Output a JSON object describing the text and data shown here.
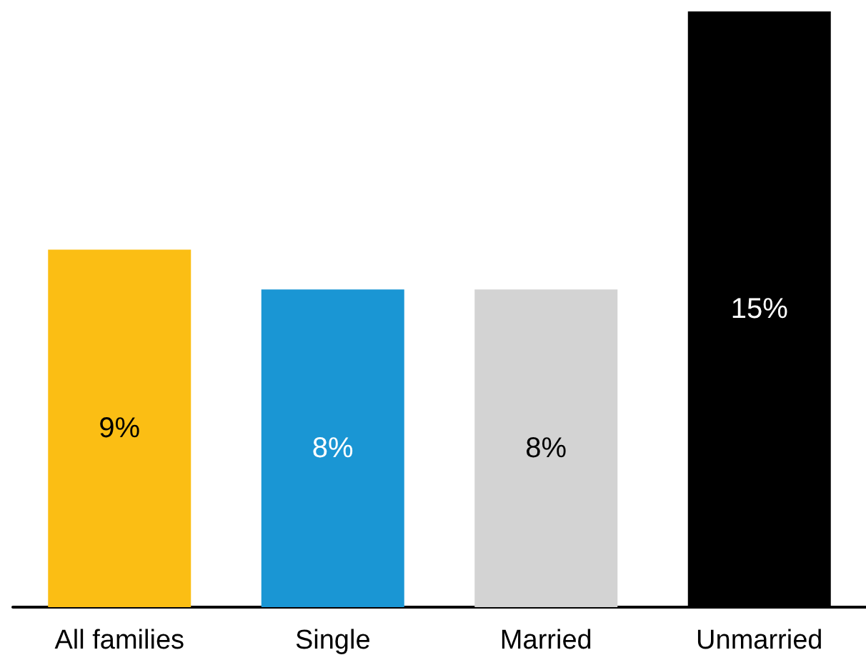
{
  "chart_data": {
    "type": "bar",
    "categories": [
      "All families",
      "Single",
      "Married",
      "Unmarried"
    ],
    "values": [
      9,
      8,
      8,
      15
    ],
    "value_labels": [
      "9%",
      "8%",
      "8%",
      "15%"
    ],
    "colors": [
      "#fbbe14",
      "#1a96d4",
      "#d3d3d3",
      "#000000"
    ],
    "ylim": [
      0,
      15
    ]
  }
}
